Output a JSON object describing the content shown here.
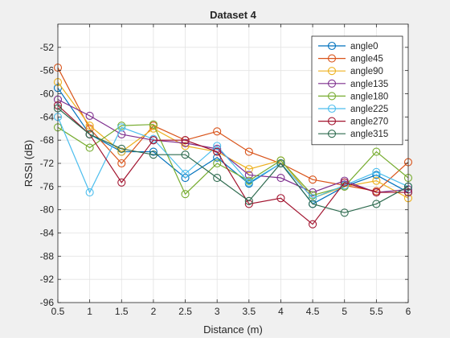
{
  "chart_data": {
    "type": "line",
    "title": "Dataset 4",
    "xlabel": "Distance (m)",
    "ylabel": "RSSI (dB)",
    "x": [
      0.5,
      1,
      1.5,
      2,
      2.5,
      3,
      3.5,
      4,
      4.5,
      5,
      5.5,
      6
    ],
    "xlim": [
      0.5,
      6
    ],
    "ylim": [
      -96,
      -48
    ],
    "xticks": [
      0.5,
      1,
      1.5,
      2,
      2.5,
      3,
      3.5,
      4,
      4.5,
      5,
      5.5,
      6
    ],
    "xtick_labels": [
      "0.5",
      "1",
      "1.5",
      "2",
      "2.5",
      "3",
      "3.5",
      "4",
      "4.5",
      "5",
      "5.5",
      "6"
    ],
    "yticks": [
      -96,
      -92,
      -88,
      -84,
      -80,
      -76,
      -72,
      -68,
      -64,
      -60,
      -56,
      -52
    ],
    "ytick_labels": [
      "-96",
      "-92",
      "-88",
      "-84",
      "-80",
      "-76",
      "-72",
      "-68",
      "-64",
      "-60",
      "-56",
      "-52"
    ],
    "grid": true,
    "legend_position": "top-right",
    "marker": "circle",
    "series": [
      {
        "name": "angle0",
        "color": "#0072BD",
        "values": [
          -59,
          -67,
          -70,
          -70,
          -74.5,
          -71,
          -75.5,
          -72,
          -79,
          -76,
          -74,
          -77
        ]
      },
      {
        "name": "angle45",
        "color": "#D95319",
        "values": [
          -55.5,
          -66,
          -72,
          -65.5,
          -68,
          -66.5,
          -70,
          -72,
          -74.8,
          -75.8,
          -76.8,
          -71.8
        ]
      },
      {
        "name": "angle90",
        "color": "#EDB120",
        "values": [
          -58,
          -65.5,
          -70,
          -66,
          -69,
          -70,
          -73,
          -71.5,
          -78,
          -76,
          -75,
          -78
        ]
      },
      {
        "name": "angle135",
        "color": "#7E2F8E",
        "values": [
          -61,
          -63.8,
          -67,
          -68,
          -68.5,
          -69.5,
          -74,
          -74.5,
          -77,
          -75,
          -77,
          -76.5
        ]
      },
      {
        "name": "angle180",
        "color": "#77AC30",
        "values": [
          -65.8,
          -69.3,
          -65.5,
          -65.3,
          -77.3,
          -72,
          -75,
          -71.5,
          -77.5,
          -76,
          -70,
          -74.5
        ]
      },
      {
        "name": "angle225",
        "color": "#4DBEEE",
        "values": [
          -64,
          -77,
          -65.8,
          -67.8,
          -73.8,
          -69,
          -75.3,
          -72,
          -78,
          -75.8,
          -73.5,
          -76
        ]
      },
      {
        "name": "angle270",
        "color": "#A2142F",
        "values": [
          -62,
          -67,
          -75.3,
          -68,
          -68,
          -70,
          -79,
          -78,
          -82.5,
          -75.3,
          -77,
          -77
        ]
      },
      {
        "name": "angle315",
        "color": "#2E6B4F",
        "values": [
          -62.5,
          -67,
          -69.5,
          -70.5,
          -70.5,
          -74.5,
          -78.5,
          -72,
          -79,
          -80.5,
          -79,
          -76
        ]
      }
    ]
  }
}
